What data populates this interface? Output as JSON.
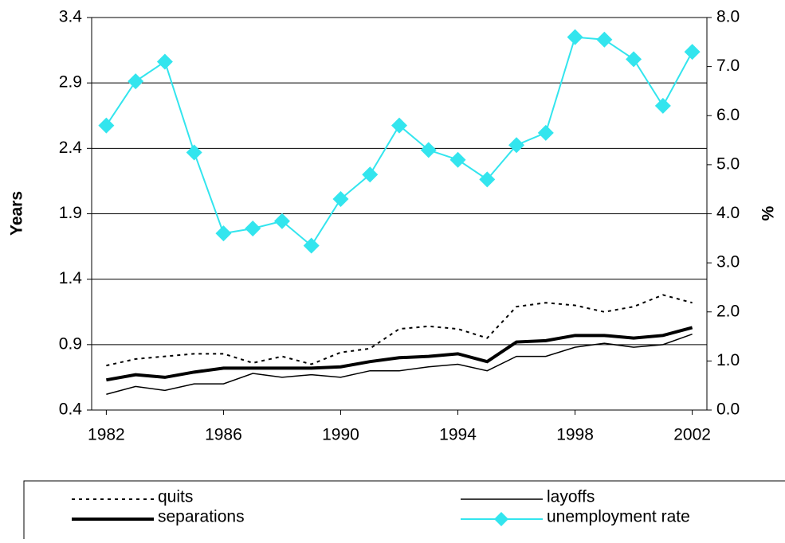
{
  "chart_data": {
    "type": "line",
    "y_label": "Years",
    "y2_label": "%",
    "x": [
      1982,
      1983,
      1984,
      1985,
      1986,
      1987,
      1988,
      1989,
      1990,
      1991,
      1992,
      1993,
      1994,
      1995,
      1996,
      1997,
      1998,
      1999,
      2000,
      2001,
      2002
    ],
    "xlim": [
      1981.5,
      2002.5
    ],
    "xticks": [
      1982,
      1986,
      1990,
      1994,
      1998,
      2002
    ],
    "ylim": [
      0.4,
      3.4
    ],
    "yticks": [
      0.4,
      0.9,
      1.4,
      1.9,
      2.4,
      2.9,
      3.4
    ],
    "y2lim": [
      0,
      8
    ],
    "y2ticks": [
      {
        "value": 0,
        "label": "0.0"
      },
      {
        "value": 1,
        "label": "1.0"
      },
      {
        "value": 2,
        "label": "2.0"
      },
      {
        "value": 3,
        "label": "3.0"
      },
      {
        "value": 4,
        "label": "4.0"
      },
      {
        "value": 5,
        "label": "5.0"
      },
      {
        "value": 6,
        "label": "6.0"
      },
      {
        "value": 7,
        "label": "7.0"
      },
      {
        "value": 8,
        "label": "8.0"
      }
    ],
    "grid": true,
    "series": [
      {
        "name": "quits",
        "color": "#000000",
        "style": "dotted",
        "values": [
          0.74,
          0.79,
          0.81,
          0.83,
          0.83,
          0.76,
          0.81,
          0.75,
          0.84,
          0.87,
          1.02,
          1.04,
          1.02,
          0.95,
          1.19,
          1.22,
          1.2,
          1.15,
          1.19,
          1.28,
          1.22
        ]
      },
      {
        "name": "layoffs",
        "color": "#000000",
        "style": "thin",
        "values": [
          0.52,
          0.58,
          0.55,
          0.6,
          0.6,
          0.68,
          0.65,
          0.67,
          0.65,
          0.7,
          0.7,
          0.73,
          0.75,
          0.7,
          0.81,
          0.81,
          0.88,
          0.91,
          0.88,
          0.9,
          0.98
        ]
      },
      {
        "name": "separations",
        "color": "#000000",
        "style": "thick",
        "values": [
          0.63,
          0.67,
          0.65,
          0.69,
          0.72,
          0.72,
          0.72,
          0.72,
          0.73,
          0.77,
          0.8,
          0.81,
          0.83,
          0.77,
          0.92,
          0.93,
          0.97,
          0.97,
          0.95,
          0.97,
          1.03
        ]
      },
      {
        "name": "unemployment rate",
        "color": "#33e5ee",
        "style": "diamond",
        "axis": "y2",
        "values": [
          5.8,
          6.7,
          7.1,
          5.25,
          3.6,
          3.7,
          3.85,
          3.35,
          4.3,
          4.8,
          5.8,
          5.3,
          5.1,
          4.7,
          5.4,
          5.65,
          7.6,
          7.55,
          7.15,
          6.2,
          7.3
        ]
      }
    ]
  }
}
